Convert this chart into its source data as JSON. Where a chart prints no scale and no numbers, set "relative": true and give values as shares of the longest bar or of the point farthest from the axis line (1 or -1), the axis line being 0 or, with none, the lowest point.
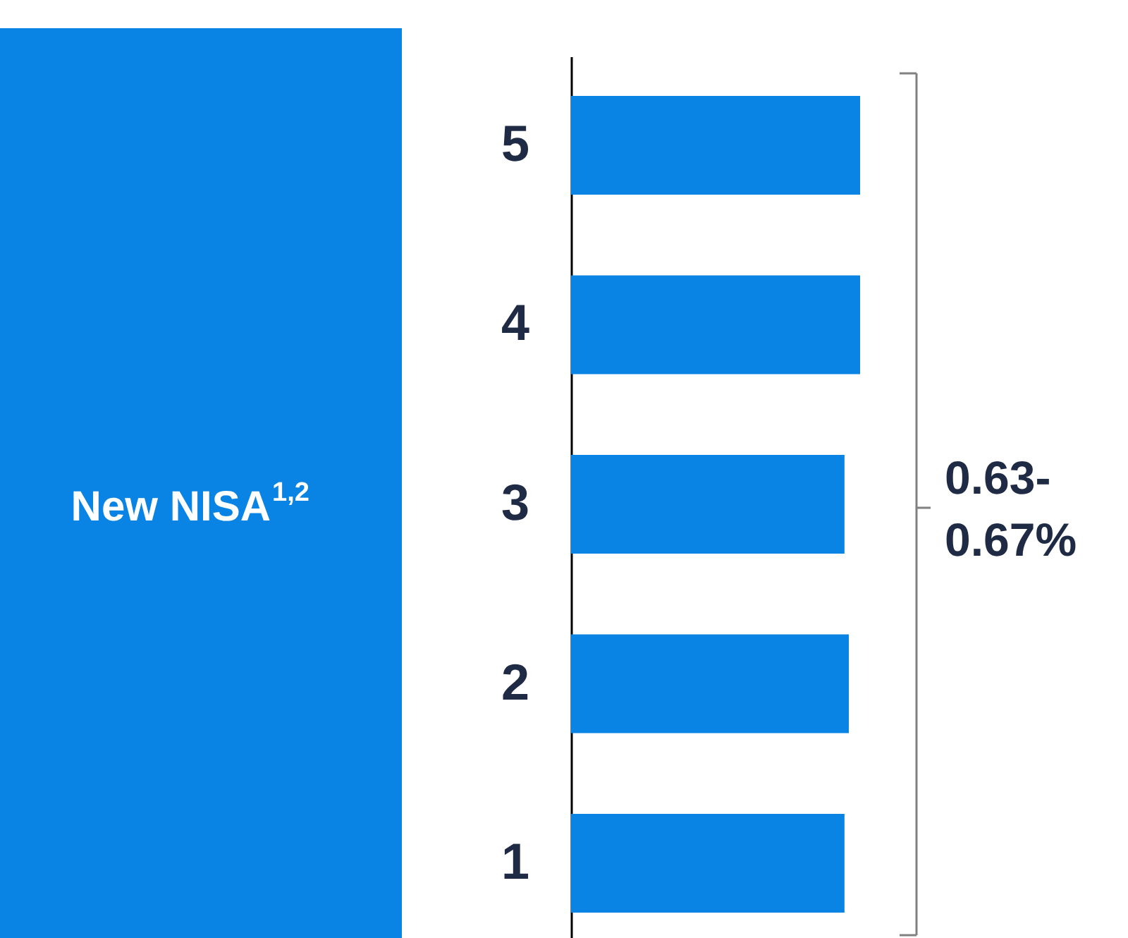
{
  "chart_data": {
    "type": "bar",
    "orientation": "horizontal",
    "relative": true,
    "title": "New NISA$^{1,2}$",
    "categories": [
      "5",
      "4",
      "3",
      "2",
      "1"
    ],
    "values": [
      1,
      1,
      0.946,
      0.961,
      0.946
    ],
    "color": "#0a84e4",
    "annotations": [
      "0.63-0.67%"
    ]
  }
}
